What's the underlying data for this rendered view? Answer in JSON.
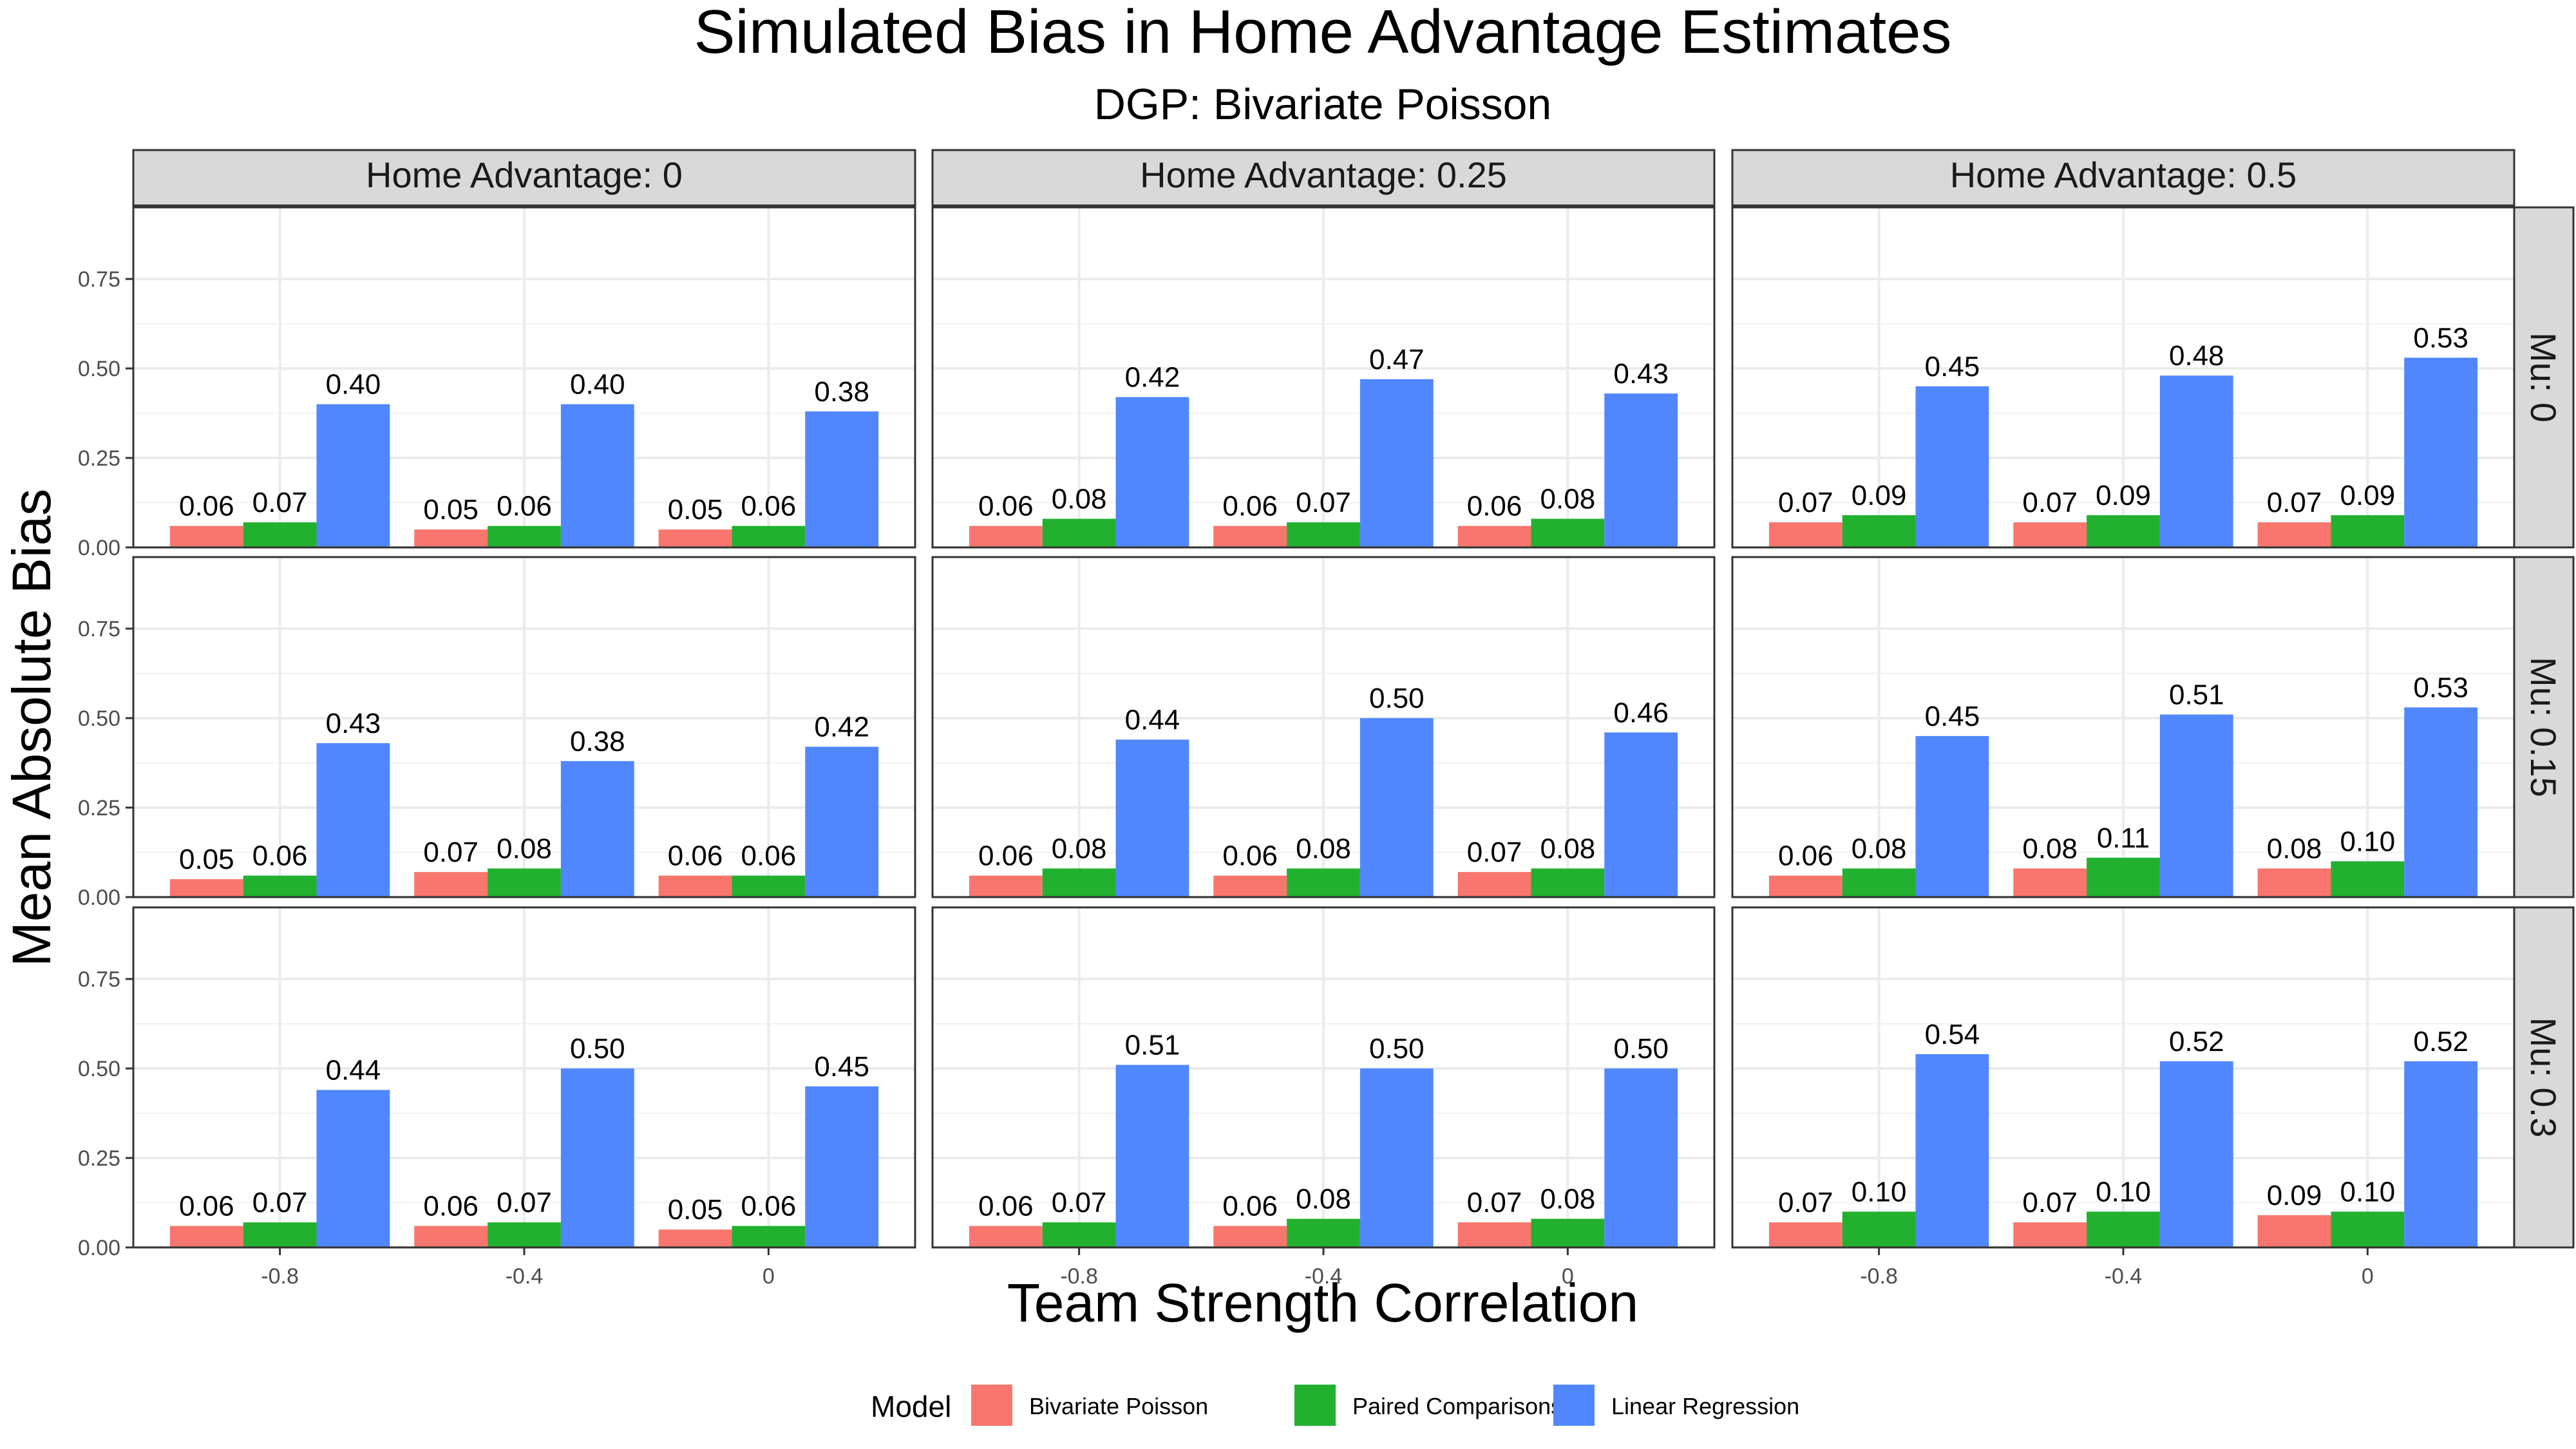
{
  "chart_data": {
    "type": "bar",
    "title": "Simulated Bias in Home Advantage Estimates",
    "subtitle": "DGP: Bivariate Poisson",
    "xlabel": "Team Strength Correlation",
    "ylabel": "Mean Absolute Bias",
    "ylim": [
      0,
      0.95
    ],
    "yticks": [
      "0.00",
      "0.25",
      "0.50",
      "0.75"
    ],
    "grid": true,
    "legend_position": "bottom",
    "legend_title": "Model",
    "categories": [
      "-0.8",
      "-0.4",
      "0"
    ],
    "series": [
      {
        "name": "Bivariate Poisson",
        "color": "#F8766D"
      },
      {
        "name": "Paired Comparisons",
        "color": "#21B12F"
      },
      {
        "name": "Linear Regression",
        "color": "#5087FF"
      }
    ],
    "col_facets": [
      "Home Advantage: 0",
      "Home Advantage: 0.25",
      "Home Advantage: 0.5"
    ],
    "row_facets": [
      "Mu: 0",
      "Mu: 0.15",
      "Mu: 0.3"
    ],
    "panels": [
      {
        "row": 0,
        "col": 0,
        "values": [
          [
            0.06,
            0.07,
            0.4
          ],
          [
            0.05,
            0.06,
            0.4
          ],
          [
            0.05,
            0.06,
            0.38
          ]
        ]
      },
      {
        "row": 0,
        "col": 1,
        "values": [
          [
            0.06,
            0.08,
            0.42
          ],
          [
            0.06,
            0.07,
            0.47
          ],
          [
            0.06,
            0.08,
            0.43
          ]
        ]
      },
      {
        "row": 0,
        "col": 2,
        "values": [
          [
            0.07,
            0.09,
            0.45
          ],
          [
            0.07,
            0.09,
            0.48
          ],
          [
            0.07,
            0.09,
            0.53
          ]
        ]
      },
      {
        "row": 1,
        "col": 0,
        "values": [
          [
            0.05,
            0.06,
            0.43
          ],
          [
            0.07,
            0.08,
            0.38
          ],
          [
            0.06,
            0.06,
            0.42
          ]
        ]
      },
      {
        "row": 1,
        "col": 1,
        "values": [
          [
            0.06,
            0.08,
            0.44
          ],
          [
            0.06,
            0.08,
            0.5
          ],
          [
            0.07,
            0.08,
            0.46
          ]
        ]
      },
      {
        "row": 1,
        "col": 2,
        "values": [
          [
            0.06,
            0.08,
            0.45
          ],
          [
            0.08,
            0.11,
            0.51
          ],
          [
            0.08,
            0.1,
            0.53
          ]
        ]
      },
      {
        "row": 2,
        "col": 0,
        "values": [
          [
            0.06,
            0.07,
            0.44
          ],
          [
            0.06,
            0.07,
            0.5
          ],
          [
            0.05,
            0.06,
            0.45
          ]
        ]
      },
      {
        "row": 2,
        "col": 1,
        "values": [
          [
            0.06,
            0.07,
            0.51
          ],
          [
            0.06,
            0.08,
            0.5
          ],
          [
            0.07,
            0.08,
            0.5
          ]
        ]
      },
      {
        "row": 2,
        "col": 2,
        "values": [
          [
            0.07,
            0.1,
            0.54
          ],
          [
            0.07,
            0.1,
            0.52
          ],
          [
            0.09,
            0.1,
            0.52
          ]
        ]
      }
    ]
  }
}
